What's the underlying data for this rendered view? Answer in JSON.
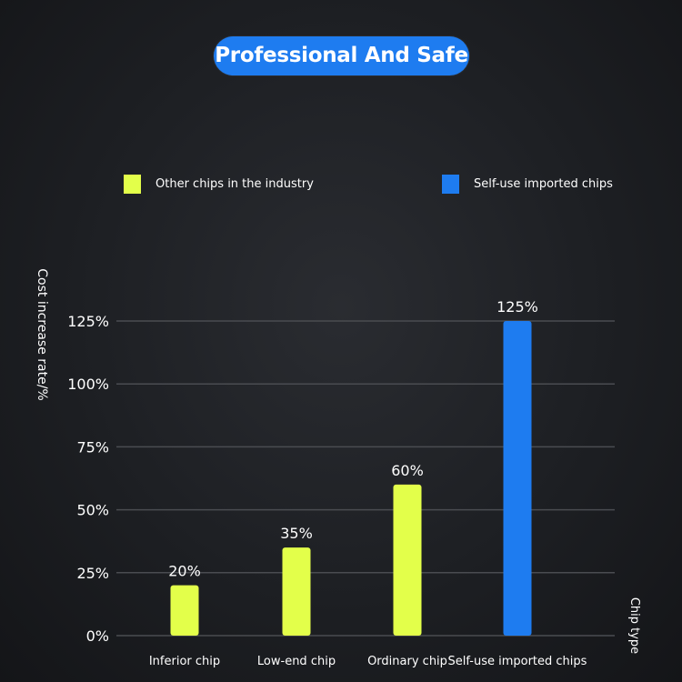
{
  "title": "Professional And Safe",
  "legend": [
    {
      "label": "Other chips in the industry",
      "color": "#e3ff4a"
    },
    {
      "label": "Self-use imported chips",
      "color": "#1e7cf0"
    }
  ],
  "chart_data": {
    "type": "bar",
    "categories": [
      "Inferior chip",
      "Low-end chip",
      "Ordinary chip",
      "Self-use imported chips"
    ],
    "values": [
      20,
      35,
      60,
      125
    ],
    "data_labels": [
      "20%",
      "35%",
      "60%",
      "125%"
    ],
    "bar_colors": [
      "#e3ff4a",
      "#e3ff4a",
      "#e3ff4a",
      "#1e7cf0"
    ],
    "ylabel": "Cost increase rate/%",
    "xlabel": "Chip type",
    "yticks": [
      0,
      25,
      50,
      75,
      100,
      125
    ],
    "ytick_labels": [
      "0%",
      "25%",
      "50%",
      "75%",
      "100%",
      "125%"
    ],
    "ylim": [
      0,
      125
    ],
    "grid": true,
    "legend_position": "top"
  }
}
